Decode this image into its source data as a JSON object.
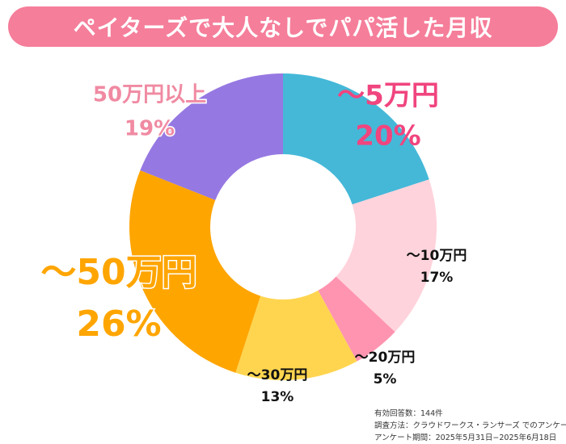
{
  "title": "ペイターズで大人なしでパパ活した月収",
  "chart_data": {
    "type": "pie",
    "donut": true,
    "title": "ペイターズで大人なしでパパ活した月収",
    "unit": "%",
    "categories": [
      "〜5万円",
      "〜10万円",
      "〜20万円",
      "〜30万円",
      "〜50万円",
      "50万円以上"
    ],
    "values": [
      20,
      17,
      5,
      13,
      26,
      19
    ],
    "value_labels": [
      "20%",
      "17%",
      "5%",
      "13%",
      "26%",
      "19%"
    ],
    "colors": [
      "#45b8d8",
      "#ffd3dc",
      "#ff94b0",
      "#ffd54f",
      "#ffa500",
      "#9678e2"
    ],
    "label_colors": [
      "#f0457e",
      "#111111",
      "#111111",
      "#111111",
      "#ffa500",
      "#f08aa2"
    ]
  },
  "footnote": {
    "respondents": "有効回答数：144件",
    "method": "調査方法：クラウドワークス・ランサーズ でのアンケート",
    "period": "アンケート期間：2025年5月31日−2025年6月18日"
  }
}
